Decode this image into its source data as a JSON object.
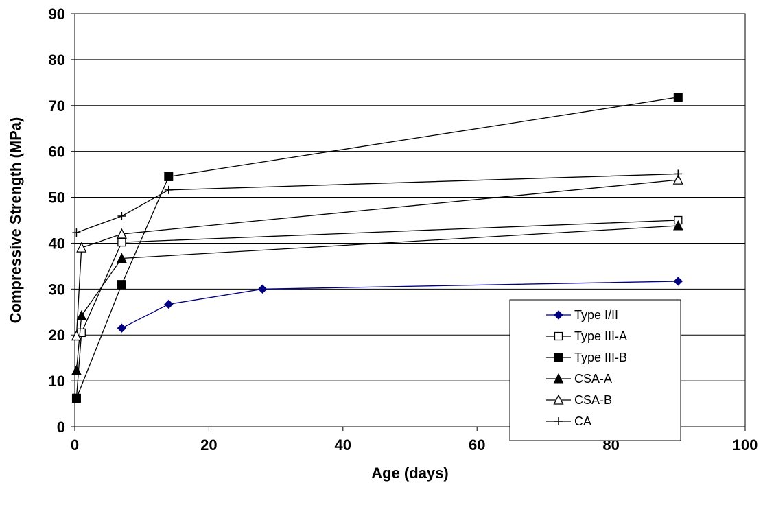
{
  "chart_data": {
    "type": "line",
    "title": "",
    "xlabel": "Age (days)",
    "ylabel": "Compressive Strength (MPa)",
    "xlim": [
      0,
      100
    ],
    "ylim": [
      0,
      90
    ],
    "x_ticks": [
      0,
      20,
      40,
      60,
      80,
      100
    ],
    "y_ticks": [
      0,
      10,
      20,
      30,
      40,
      50,
      60,
      70,
      80,
      90
    ],
    "grid": "horizontal",
    "legend_position": "bottom-right",
    "series": [
      {
        "name": "Type I/II",
        "color": "#000080",
        "marker": "filled-diamond",
        "x": [
          7,
          14,
          28,
          90
        ],
        "y": [
          21.5,
          26.7,
          30.0,
          31.7
        ]
      },
      {
        "name": "Type III-A",
        "color": "#000000",
        "marker": "open-square",
        "x": [
          0.25,
          1,
          7,
          90
        ],
        "y": [
          6.3,
          20.5,
          40.2,
          45.0
        ]
      },
      {
        "name": "Type III-B",
        "color": "#000000",
        "marker": "filled-square",
        "x": [
          0.25,
          7,
          14,
          90
        ],
        "y": [
          6.2,
          31.0,
          54.5,
          71.8
        ]
      },
      {
        "name": "CSA-A",
        "color": "#000000",
        "marker": "filled-triangle",
        "x": [
          0.25,
          1,
          7,
          90
        ],
        "y": [
          12.3,
          24.2,
          36.7,
          43.8
        ]
      },
      {
        "name": "CSA-B",
        "color": "#000000",
        "marker": "open-triangle",
        "x": [
          0.25,
          1,
          7,
          90
        ],
        "y": [
          19.8,
          39.0,
          42.0,
          53.8
        ]
      },
      {
        "name": "CA",
        "color": "#000000",
        "marker": "plus",
        "x": [
          0.25,
          7,
          14,
          90
        ],
        "y": [
          42.3,
          45.9,
          51.6,
          55.1
        ]
      }
    ]
  }
}
